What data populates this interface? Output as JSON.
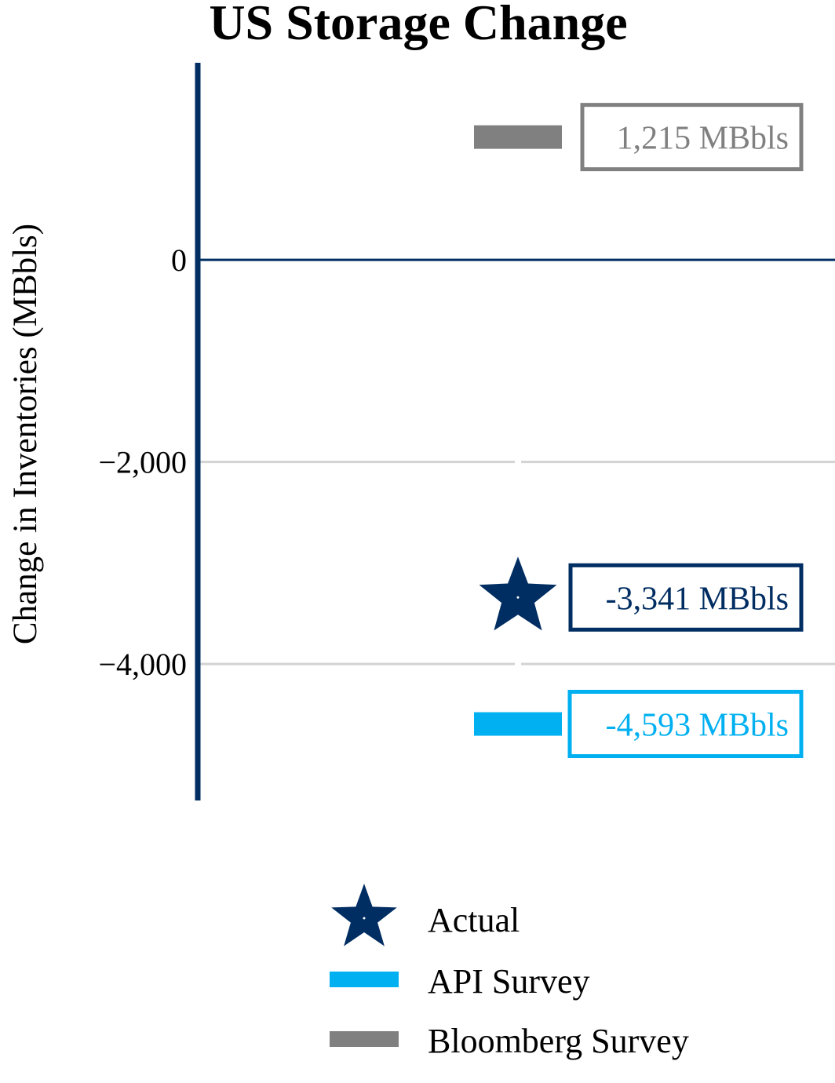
{
  "chart_data": {
    "type": "scatter",
    "title": "US Storage Change",
    "ylabel": "Change in Inventories (MBbls)",
    "xlabel": "",
    "ylim": [
      -5350,
      1950
    ],
    "yticks": [
      0,
      -2000,
      -4000
    ],
    "ytick_labels": [
      "0",
      "−2,000",
      "−4,000"
    ],
    "grid": true,
    "legend_position": "bottom-center",
    "series": [
      {
        "name": "Actual",
        "marker": "star",
        "value": -3341,
        "label": "-3,341 MBbls",
        "color": "#002d62"
      },
      {
        "name": "API Survey",
        "marker": "bar",
        "value": -4593,
        "label": "-4,593 MBbls",
        "color": "#00b0f0"
      },
      {
        "name": "Bloomberg Survey",
        "marker": "bar",
        "value": 1215,
        "label": "1,215 MBbls",
        "color": "#808080"
      }
    ],
    "colors": {
      "axis": "#002d62",
      "grid": "#d3d3d3",
      "text": "#000000"
    }
  }
}
